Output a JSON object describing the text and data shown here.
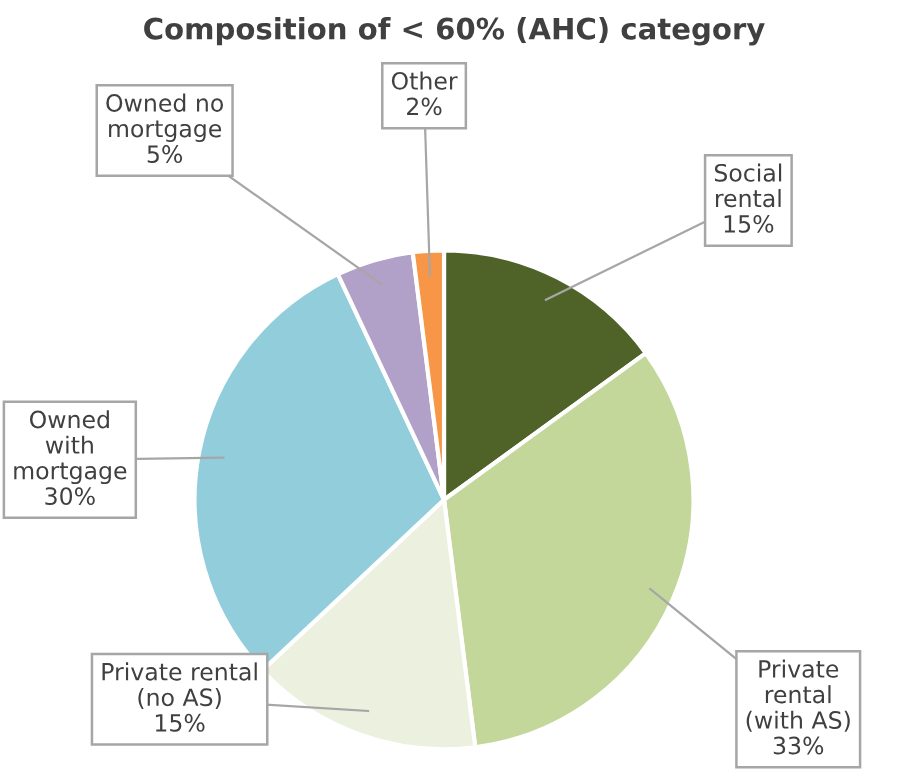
{
  "chart_data": {
    "type": "pie",
    "title": "Composition of < 60% (AHC) category",
    "categories": [
      "Social\nrental",
      "Private\nrental\n(with AS)",
      "Private rental\n(no AS)",
      "Owned\nwith\nmortgage",
      "Owned no\nmortgage",
      "Other"
    ],
    "values": [
      15,
      33,
      15,
      30,
      5,
      2
    ],
    "colors": [
      "#4f6228",
      "#c4d79b",
      "#ebf1de",
      "#92cddc",
      "#b1a0c7",
      "#f79646"
    ],
    "value_labels": [
      "15%",
      "33%",
      "15%",
      "30%",
      "5%",
      "2%"
    ],
    "legend": false
  }
}
